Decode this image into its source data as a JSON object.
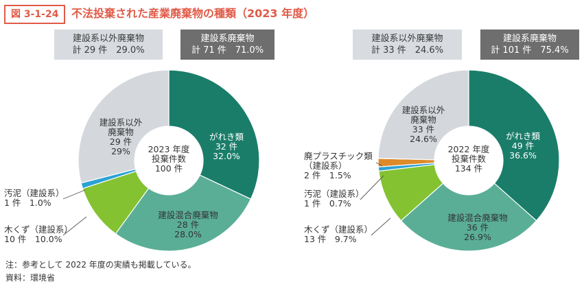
{
  "figure": {
    "badge": "図 3-1-24",
    "title": "不法投棄された産業廃棄物の種類（2023 年度）"
  },
  "summaries": [
    {
      "title": "建設系以外廃棄物",
      "value": "計 29 件　29.0%"
    },
    {
      "title": "建設系廃棄物",
      "value": "計 71 件　71.0%"
    },
    {
      "title": "建設系以外廃棄物",
      "value": "計 33 件　24.6%"
    },
    {
      "title": "建設系廃棄物",
      "value": "計 101 件　75.4%"
    }
  ],
  "colors": {
    "teal_dark": "#1a7d6a",
    "teal_mid": "#5aae96",
    "green": "#84c232",
    "blue": "#2ba1d5",
    "orange": "#dd8a2a",
    "gray": "#d4d8dc",
    "title": "#e05a47"
  },
  "chart_data": [
    {
      "type": "pie",
      "variant": "donut",
      "center_label": [
        "2023 年度",
        "投棄件数",
        "100 件"
      ],
      "categories": [
        "がれき類",
        "建設混合廃棄物",
        "木くず（建設系）",
        "汚泥（建設系）",
        "建設系以外廃棄物"
      ],
      "values": [
        32,
        28,
        10,
        1,
        29
      ],
      "percents": [
        32.0,
        28.0,
        10.0,
        1.0,
        29.0
      ],
      "labels": [
        [
          "がれき類",
          "32 件",
          "32.0%"
        ],
        [
          "建設混合廃棄物",
          "28 件",
          "28.0%"
        ],
        [
          "木くず（建設系）",
          "10 件　10.0%"
        ],
        [
          "汚泥（建設系）",
          "1 件　1.0%"
        ],
        [
          "建設系以外",
          "廃棄物",
          "29 件",
          "29%"
        ]
      ],
      "colors": [
        "#1a7d6a",
        "#5aae96",
        "#84c232",
        "#2ba1d5",
        "#d4d8dc"
      ]
    },
    {
      "type": "pie",
      "variant": "donut",
      "center_label": [
        "2022 年度",
        "投棄件数",
        "134 件"
      ],
      "categories": [
        "がれき類",
        "建設混合廃棄物",
        "木くず（建設系）",
        "汚泥（建設系）",
        "廃プラスチック類（建設系）",
        "建設系以外廃棄物"
      ],
      "values": [
        49,
        36,
        13,
        1,
        2,
        33
      ],
      "percents": [
        36.6,
        26.9,
        9.7,
        0.7,
        1.5,
        24.6
      ],
      "labels": [
        [
          "がれき類",
          "49 件",
          "36.6%"
        ],
        [
          "建設混合廃棄物",
          "36 件",
          "26.9%"
        ],
        [
          "木くず（建設系）",
          "13 件　9.7%"
        ],
        [
          "汚泥（建設系）",
          "1 件　0.7%"
        ],
        [
          "廃プラスチック類",
          "（建設系）",
          "2 件　1.5%"
        ],
        [
          "建設系以外",
          "廃棄物",
          "33 件",
          "24.6%"
        ]
      ],
      "colors": [
        "#1a7d6a",
        "#5aae96",
        "#84c232",
        "#2ba1d5",
        "#dd8a2a",
        "#d4d8dc"
      ]
    }
  ],
  "footer": {
    "note": "注：参考として 2022 年度の実績も掲載している。",
    "source": "資料：環境省"
  }
}
